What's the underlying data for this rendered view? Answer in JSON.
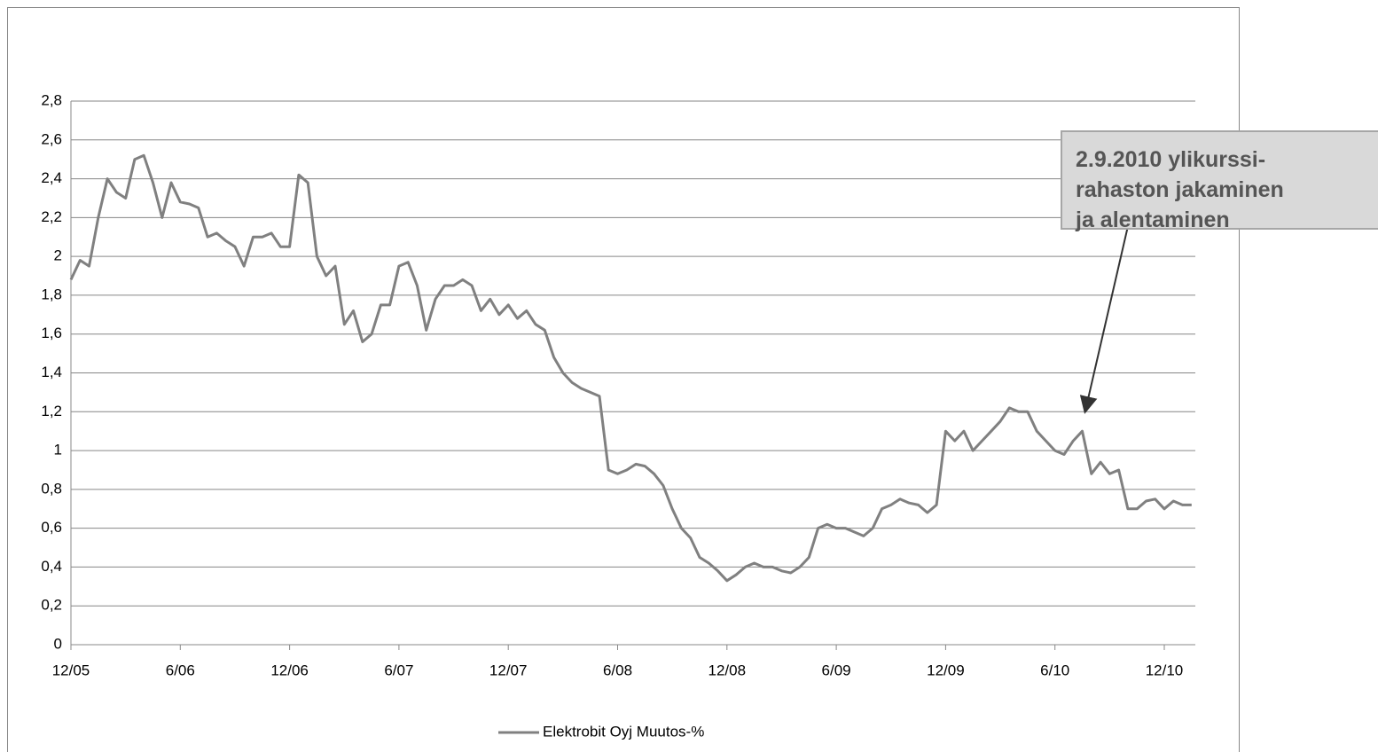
{
  "chart_data": {
    "type": "line",
    "categories": [
      "12/05",
      null,
      null,
      null,
      null,
      null,
      null,
      null,
      null,
      null,
      null,
      null,
      "6/06",
      null,
      null,
      null,
      null,
      null,
      null,
      null,
      null,
      null,
      null,
      null,
      "12/06",
      null,
      null,
      null,
      null,
      null,
      null,
      null,
      null,
      null,
      null,
      null,
      "6/07",
      null,
      null,
      null,
      null,
      null,
      null,
      null,
      null,
      null,
      null,
      null,
      "12/07",
      null,
      null,
      null,
      null,
      null,
      null,
      null,
      null,
      null,
      null,
      null,
      "6/08",
      null,
      null,
      null,
      null,
      null,
      null,
      null,
      null,
      null,
      null,
      null,
      "12/08",
      null,
      null,
      null,
      null,
      null,
      null,
      null,
      null,
      null,
      null,
      null,
      "6/09",
      null,
      null,
      null,
      null,
      null,
      null,
      null,
      null,
      null,
      null,
      null,
      "12/09",
      null,
      null,
      null,
      null,
      null,
      null,
      null,
      null,
      null,
      null,
      null,
      "6/10",
      null,
      null,
      null,
      null,
      null,
      null,
      null,
      null,
      null,
      null,
      null,
      "12/10",
      null,
      null,
      null
    ],
    "series": [
      {
        "name": "Elektrobit Oyj Muutos-%",
        "color": "#808080",
        "values": [
          1.88,
          1.98,
          1.95,
          2.2,
          2.4,
          2.33,
          2.3,
          2.5,
          2.52,
          2.38,
          2.2,
          2.38,
          2.28,
          2.27,
          2.25,
          2.1,
          2.12,
          2.08,
          2.05,
          1.95,
          2.1,
          2.1,
          2.12,
          2.05,
          2.05,
          2.42,
          2.38,
          2.0,
          1.9,
          1.95,
          1.65,
          1.72,
          1.56,
          1.6,
          1.75,
          1.75,
          1.95,
          1.97,
          1.85,
          1.62,
          1.78,
          1.85,
          1.85,
          1.88,
          1.85,
          1.72,
          1.78,
          1.7,
          1.75,
          1.68,
          1.72,
          1.65,
          1.62,
          1.48,
          1.4,
          1.35,
          1.32,
          1.3,
          1.28,
          0.9,
          0.88,
          0.9,
          0.93,
          0.92,
          0.88,
          0.82,
          0.7,
          0.6,
          0.55,
          0.45,
          0.42,
          0.38,
          0.33,
          0.36,
          0.4,
          0.42,
          0.4,
          0.4,
          0.38,
          0.37,
          0.4,
          0.45,
          0.6,
          0.62,
          0.6,
          0.6,
          0.58,
          0.56,
          0.6,
          0.7,
          0.72,
          0.75,
          0.73,
          0.72,
          0.68,
          0.72,
          1.1,
          1.05,
          1.1,
          1.0,
          1.05,
          1.1,
          1.15,
          1.22,
          1.2,
          1.2,
          1.1,
          1.05,
          1.0,
          0.98,
          1.05,
          1.1,
          0.88,
          0.94,
          0.88,
          0.9,
          0.7,
          0.7,
          0.74,
          0.75,
          0.7,
          0.74,
          0.72,
          0.72
        ]
      }
    ],
    "ylim": [
      0,
      2.8
    ],
    "yticks": [
      0,
      {
        "value": 0.2,
        "label": "0,2"
      },
      {
        "value": 0.4,
        "label": "0,4"
      },
      {
        "value": 0.6,
        "label": "0,6"
      },
      {
        "value": 0.8,
        "label": "0,8"
      },
      1,
      {
        "value": 1.2,
        "label": "1,2"
      },
      {
        "value": 1.4,
        "label": "1,4"
      },
      {
        "value": 1.6,
        "label": "1,6"
      },
      {
        "value": 1.8,
        "label": "1,8"
      },
      2,
      {
        "value": 2.2,
        "label": "2,2"
      },
      {
        "value": 2.4,
        "label": "2,4"
      },
      {
        "value": 2.6,
        "label": "2,6"
      },
      {
        "value": 2.8,
        "label": "2,8"
      }
    ],
    "grid": true,
    "legend": "bottom",
    "annotation": [
      "2.9.2010 ylikurssi-",
      "rahaston jakaminen",
      "ja alentaminen"
    ]
  }
}
